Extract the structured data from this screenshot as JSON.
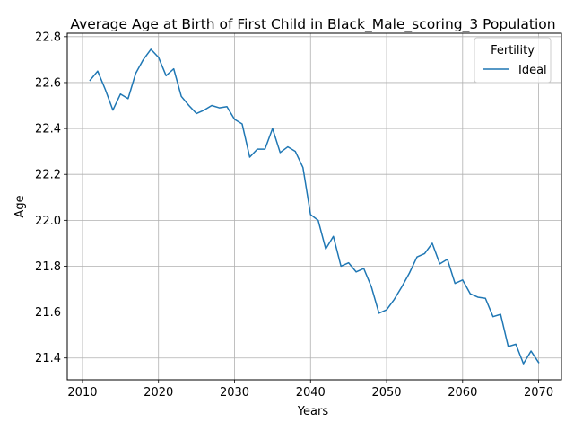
{
  "chart_data": {
    "type": "line",
    "title": "Average Age at Birth of First Child in Black_Male_scoring_3 Population",
    "xlabel": "Years",
    "ylabel": "Age",
    "xlim": [
      2008,
      2073
    ],
    "ylim": [
      21.305,
      22.815
    ],
    "xticks": [
      2010,
      2020,
      2030,
      2040,
      2050,
      2060,
      2070
    ],
    "yticks": [
      21.4,
      21.6,
      21.8,
      22.0,
      22.2,
      22.4,
      22.6,
      22.8
    ],
    "xtick_labels": [
      "2010",
      "2020",
      "2030",
      "2040",
      "2050",
      "2060",
      "2070"
    ],
    "ytick_labels": [
      "21.4",
      "21.6",
      "21.8",
      "22.0",
      "22.2",
      "22.4",
      "22.6",
      "22.8"
    ],
    "grid": true,
    "legend": {
      "title": "Fertility",
      "placement": "top-right"
    },
    "series": [
      {
        "name": "Ideal",
        "color": "#1f77b4",
        "x": [
          2011,
          2012,
          2013,
          2014,
          2015,
          2016,
          2017,
          2018,
          2019,
          2020,
          2021,
          2022,
          2023,
          2024,
          2025,
          2026,
          2027,
          2028,
          2029,
          2030,
          2031,
          2032,
          2033,
          2034,
          2035,
          2036,
          2037,
          2038,
          2039,
          2040,
          2041,
          2042,
          2043,
          2044,
          2045,
          2046,
          2047,
          2048,
          2049,
          2050,
          2051,
          2052,
          2053,
          2054,
          2055,
          2056,
          2057,
          2058,
          2059,
          2060,
          2061,
          2062,
          2063,
          2064,
          2065,
          2066,
          2067,
          2068,
          2069,
          2070
        ],
        "y": [
          22.61,
          22.65,
          22.57,
          22.48,
          22.55,
          22.53,
          22.64,
          22.7,
          22.745,
          22.71,
          22.63,
          22.66,
          22.54,
          22.5,
          22.465,
          22.48,
          22.5,
          22.49,
          22.495,
          22.44,
          22.42,
          22.275,
          22.31,
          22.31,
          22.4,
          22.295,
          22.32,
          22.3,
          22.23,
          22.025,
          22.0,
          21.875,
          21.93,
          21.8,
          21.815,
          21.775,
          21.79,
          21.71,
          21.595,
          21.61,
          21.655,
          21.71,
          21.77,
          21.84,
          21.855,
          21.9,
          21.81,
          21.83,
          21.725,
          21.74,
          21.68,
          21.665,
          21.66,
          21.58,
          21.59,
          21.45,
          21.46,
          21.375,
          21.43,
          21.38
        ]
      }
    ]
  }
}
